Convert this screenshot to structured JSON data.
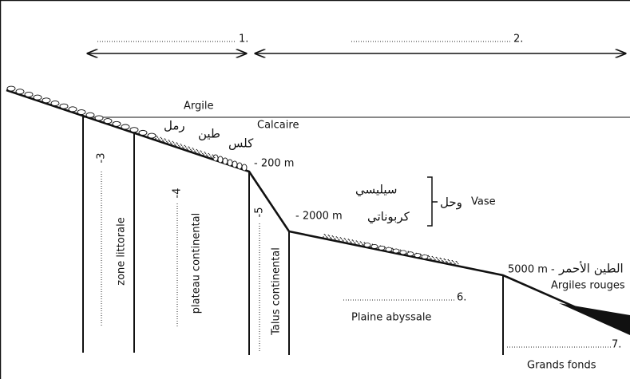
{
  "labels": {
    "n1": "1.",
    "n2": "2.",
    "n3": "-3",
    "n4": "-4",
    "n5": "-5",
    "n6": "6.",
    "n7": "7.",
    "argile": "Argile",
    "calcaire": "Calcaire",
    "raml": "رمل",
    "tin": "طين",
    "kils": "كلس",
    "d200": "- 200 m",
    "siliceous": "سيليسي",
    "carbonate": "كربوناتي",
    "wahl": "وحل",
    "vase": "Vase",
    "d2000": "- 2000 m",
    "d5000": "5000 m -",
    "red_clay_ar": "الطين الأحمر",
    "red_clay": "Argiles rouges",
    "zone": "zone littorale",
    "plateau": "plateau continental",
    "talus": "Talus continental",
    "plaine": "Plaine abyssale",
    "grands": "Grands fonds"
  }
}
